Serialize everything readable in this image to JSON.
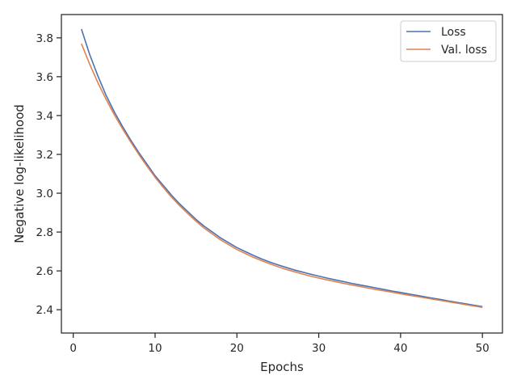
{
  "chart_data": {
    "type": "line",
    "title": "",
    "xlabel": "Epochs",
    "ylabel": "Negative log-likelihood",
    "xlim": [
      -1.45,
      52.45
    ],
    "ylim": [
      2.28,
      3.92
    ],
    "xticks": [
      0,
      10,
      20,
      30,
      40,
      50
    ],
    "yticks": [
      2.4,
      2.6,
      2.8,
      3.0,
      3.2,
      3.4,
      3.6,
      3.8
    ],
    "ytick_labels": [
      "2.4",
      "2.6",
      "2.8",
      "3.0",
      "3.2",
      "3.4",
      "3.6",
      "3.8"
    ],
    "grid": false,
    "legend_position": "top-right",
    "x": [
      1,
      2,
      3,
      4,
      5,
      6,
      7,
      8,
      9,
      10,
      11,
      12,
      13,
      14,
      15,
      16,
      17,
      18,
      19,
      20,
      21,
      22,
      23,
      24,
      25,
      26,
      27,
      28,
      29,
      30,
      31,
      32,
      33,
      34,
      35,
      36,
      37,
      38,
      39,
      40,
      41,
      42,
      43,
      44,
      45,
      46,
      47,
      48,
      49,
      50
    ],
    "series": [
      {
        "name": "Loss",
        "color": "#4c72b0",
        "values": [
          3.845,
          3.715,
          3.605,
          3.505,
          3.42,
          3.345,
          3.275,
          3.21,
          3.15,
          3.09,
          3.04,
          2.99,
          2.945,
          2.905,
          2.865,
          2.83,
          2.8,
          2.77,
          2.745,
          2.72,
          2.7,
          2.68,
          2.662,
          2.646,
          2.631,
          2.618,
          2.605,
          2.594,
          2.583,
          2.573,
          2.563,
          2.554,
          2.545,
          2.536,
          2.528,
          2.52,
          2.512,
          2.504,
          2.496,
          2.489,
          2.481,
          2.474,
          2.466,
          2.459,
          2.452,
          2.444,
          2.437,
          2.43,
          2.423,
          2.416
        ]
      },
      {
        "name": "Val. loss",
        "color": "#dd8452",
        "values": [
          3.77,
          3.665,
          3.57,
          3.485,
          3.405,
          3.333,
          3.265,
          3.2,
          3.14,
          3.082,
          3.03,
          2.98,
          2.936,
          2.895,
          2.856,
          2.82,
          2.79,
          2.76,
          2.735,
          2.71,
          2.69,
          2.67,
          2.653,
          2.637,
          2.622,
          2.608,
          2.596,
          2.584,
          2.573,
          2.563,
          2.554,
          2.545,
          2.536,
          2.528,
          2.52,
          2.512,
          2.504,
          2.497,
          2.49,
          2.482,
          2.475,
          2.468,
          2.461,
          2.454,
          2.447,
          2.44,
          2.433,
          2.426,
          2.419,
          2.412
        ]
      }
    ]
  }
}
